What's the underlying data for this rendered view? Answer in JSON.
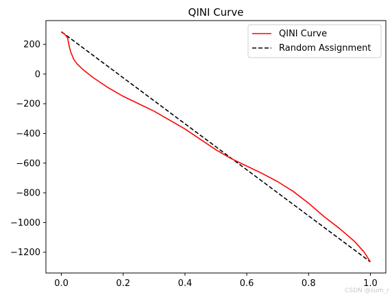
{
  "chart_data": {
    "type": "line",
    "title": "QINI Curve",
    "xlabel": "",
    "ylabel": "",
    "xlim": [
      -0.05,
      1.05
    ],
    "ylim": [
      -1340,
      360
    ],
    "x_ticks": [
      0.0,
      0.2,
      0.4,
      0.6,
      0.8,
      1.0
    ],
    "x_tick_labels": [
      "0.0",
      "0.2",
      "0.4",
      "0.6",
      "0.8",
      "1.0"
    ],
    "y_ticks": [
      200,
      0,
      -200,
      -400,
      -600,
      -800,
      -1000,
      -1200
    ],
    "y_tick_labels": [
      "200",
      "0",
      "−200",
      "−400",
      "−600",
      "−800",
      "−1000",
      "−1200"
    ],
    "grid": false,
    "legend_position": "top-right",
    "series": [
      {
        "name": "QINI Curve",
        "color": "#ff0000",
        "style": "solid",
        "x": [
          0.0,
          0.01,
          0.02,
          0.025,
          0.03,
          0.04,
          0.05,
          0.07,
          0.1,
          0.15,
          0.2,
          0.25,
          0.3,
          0.35,
          0.4,
          0.45,
          0.5,
          0.55,
          0.6,
          0.65,
          0.7,
          0.75,
          0.8,
          0.85,
          0.9,
          0.95,
          0.98,
          1.0
        ],
        "y": [
          282,
          270,
          245,
          190,
          150,
          100,
          70,
          30,
          -20,
          -90,
          -150,
          -200,
          -250,
          -310,
          -370,
          -440,
          -510,
          -570,
          -620,
          -670,
          -725,
          -790,
          -870,
          -960,
          -1040,
          -1130,
          -1200,
          -1265
        ]
      },
      {
        "name": "Random Assignment",
        "color": "#000000",
        "style": "dashed",
        "x": [
          0.0,
          1.0
        ],
        "y": [
          285,
          -1265
        ]
      }
    ]
  },
  "watermark": "CSDN @sum_r"
}
